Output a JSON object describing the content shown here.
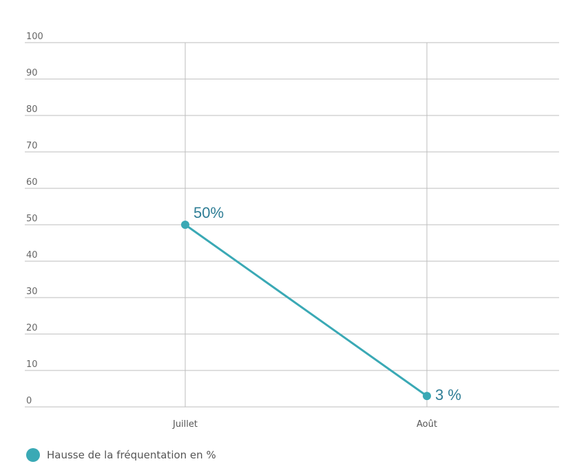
{
  "chart_data": {
    "type": "line",
    "categories": [
      "Juillet",
      "Août"
    ],
    "series": [
      {
        "name": "Hausse de la fréquentation en %",
        "values": [
          50,
          3
        ],
        "labels": [
          "50%",
          "3 %"
        ]
      }
    ],
    "yticks": [
      0,
      10,
      20,
      30,
      40,
      50,
      60,
      70,
      80,
      90,
      100
    ],
    "ylim": [
      0,
      100
    ],
    "grid": true,
    "legend_position": "bottom-left",
    "colors": {
      "series": "#3aa9b5",
      "label": "#2e7d95",
      "grid": "#bdbdbd",
      "axis_text": "#666666"
    }
  }
}
